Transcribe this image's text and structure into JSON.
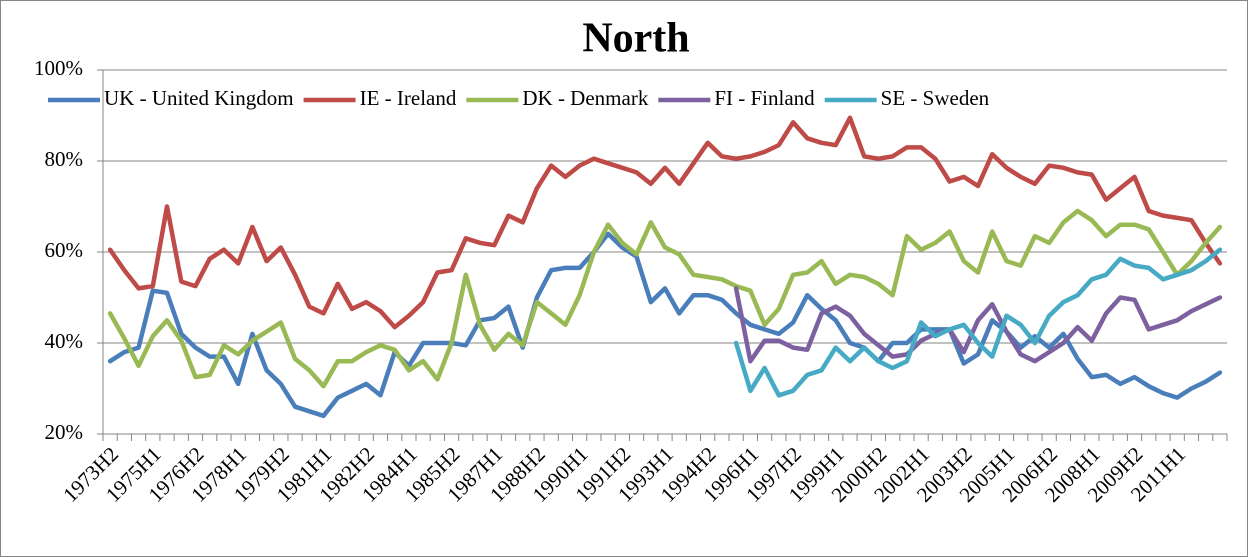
{
  "chart_data": {
    "type": "line",
    "title": "North",
    "categories": [
      "1973H2",
      null,
      null,
      "1975H1",
      null,
      null,
      "1976H2",
      null,
      null,
      "1978H1",
      null,
      null,
      "1979H2",
      null,
      null,
      "1981H1",
      null,
      null,
      "1982H2",
      null,
      null,
      "1984H1",
      null,
      null,
      "1985H2",
      null,
      null,
      "1987H1",
      null,
      null,
      "1988H2",
      null,
      null,
      "1990H1",
      null,
      null,
      "1991H2",
      null,
      null,
      "1993H1",
      null,
      null,
      "1994H2",
      null,
      null,
      "1996H1",
      null,
      null,
      "1997H2",
      null,
      null,
      "1999H1",
      null,
      null,
      "2000H2",
      null,
      null,
      "2002H1",
      null,
      null,
      "2003H2",
      null,
      null,
      "2005H1",
      null,
      null,
      "2006H2",
      null,
      null,
      "2008H1",
      null,
      null,
      "2009H2",
      null,
      null,
      "2011H1",
      null,
      null,
      null
    ],
    "series": [
      {
        "name": "UK - United Kingdom",
        "color": "#4a7ebb",
        "values": [
          36,
          38,
          39,
          51.5,
          51,
          42,
          39,
          37,
          37,
          31,
          42,
          34,
          31,
          26,
          25,
          24,
          28,
          29.5,
          31,
          28.5,
          38,
          35,
          40,
          40,
          40,
          39.5,
          45,
          45.5,
          48,
          39,
          50,
          56,
          56.5,
          56.5,
          60,
          64,
          61,
          59,
          49,
          52,
          46.5,
          50.5,
          50.5,
          49.5,
          46.5,
          44,
          43,
          42,
          44.5,
          50.5,
          47.5,
          45,
          40,
          39,
          36,
          40,
          40,
          43,
          43,
          43,
          35.5,
          37.5,
          45,
          42.5,
          39,
          41.5,
          39,
          42,
          36.5,
          32.5,
          33,
          31,
          32.5,
          30.5,
          29,
          28,
          30,
          31.5,
          33.5
        ]
      },
      {
        "name": "IE - Ireland",
        "color": "#be4b48",
        "values": [
          60.5,
          56,
          52,
          52.5,
          70,
          53.5,
          52.5,
          58.5,
          60.5,
          57.5,
          65.5,
          58,
          61,
          55,
          48,
          46.5,
          53,
          47.5,
          49,
          47,
          43.5,
          46,
          49,
          55.5,
          56,
          63,
          62,
          61.5,
          68,
          66.5,
          74,
          79,
          76.5,
          79,
          80.5,
          79.5,
          78.5,
          77.5,
          75,
          78.5,
          75,
          79.5,
          84,
          81,
          80.5,
          81,
          82,
          83.5,
          88.5,
          85,
          84,
          83.5,
          89.5,
          81,
          80.5,
          81,
          83,
          83,
          80.5,
          75.5,
          76.5,
          74.5,
          81.5,
          78.5,
          76.5,
          75,
          79,
          78.5,
          77.5,
          77,
          71.5,
          74,
          76.5,
          69,
          68,
          67.5,
          67,
          62,
          57.5
        ]
      },
      {
        "name": "DK - Denmark",
        "color": "#98b954",
        "values": [
          46.5,
          41,
          35,
          41.5,
          45,
          40.5,
          32.5,
          33,
          39.5,
          37.5,
          40.5,
          42.5,
          44.5,
          36.5,
          34,
          30.5,
          36,
          36,
          38,
          39.5,
          38.5,
          34,
          36,
          32,
          40,
          55,
          44,
          38.5,
          42,
          39.5,
          49,
          46.5,
          44,
          50.5,
          60,
          66,
          62,
          59.5,
          66.5,
          61,
          59.5,
          55,
          54.5,
          54,
          52.5,
          51.5,
          44,
          47.5,
          55,
          55.5,
          58,
          53,
          55,
          54.5,
          53,
          50.5,
          63.5,
          60.5,
          62,
          64.5,
          58,
          55.5,
          64.5,
          58,
          57,
          63.5,
          62,
          66.5,
          69,
          67,
          63.5,
          66,
          66,
          65,
          60,
          55,
          58,
          62,
          65.5
        ]
      },
      {
        "name": "FI - Finland",
        "color": "#7d60a0",
        "values": [
          null,
          null,
          null,
          null,
          null,
          null,
          null,
          null,
          null,
          null,
          null,
          null,
          null,
          null,
          null,
          null,
          null,
          null,
          null,
          null,
          null,
          null,
          null,
          null,
          null,
          null,
          null,
          null,
          null,
          null,
          null,
          null,
          null,
          null,
          null,
          null,
          null,
          null,
          null,
          null,
          null,
          null,
          null,
          null,
          52,
          36,
          40.5,
          40.5,
          39,
          38.5,
          46.5,
          48,
          46,
          42,
          39.5,
          37,
          37.5,
          40.5,
          42,
          43,
          38,
          45,
          48.5,
          42.5,
          37.5,
          36,
          38,
          40,
          43.5,
          40.5,
          46.5,
          50,
          49.5,
          43,
          44,
          45,
          47,
          48.5,
          50
        ]
      },
      {
        "name": "SE - Sweden",
        "color": "#46aac5",
        "values": [
          null,
          null,
          null,
          null,
          null,
          null,
          null,
          null,
          null,
          null,
          null,
          null,
          null,
          null,
          null,
          null,
          null,
          null,
          null,
          null,
          null,
          null,
          null,
          null,
          null,
          null,
          null,
          null,
          null,
          null,
          null,
          null,
          null,
          null,
          null,
          null,
          null,
          null,
          null,
          null,
          null,
          null,
          null,
          null,
          40,
          29.5,
          34.5,
          28.5,
          29.5,
          33,
          34,
          39,
          36,
          39,
          36,
          34.5,
          36,
          44.5,
          41.5,
          43,
          44,
          40,
          37,
          46,
          44,
          40,
          46,
          49,
          50.5,
          54,
          55,
          58.5,
          57,
          56.5,
          54,
          55,
          56,
          58,
          60.5
        ]
      }
    ],
    "ylim": [
      20,
      100
    ],
    "yticks": [
      {
        "value": 20,
        "label": "20%"
      },
      {
        "value": 40,
        "label": "40%"
      },
      {
        "value": 60,
        "label": "60%"
      },
      {
        "value": 80,
        "label": "80%"
      },
      {
        "value": 100,
        "label": "100%"
      }
    ],
    "grid": true,
    "legend": "top"
  }
}
